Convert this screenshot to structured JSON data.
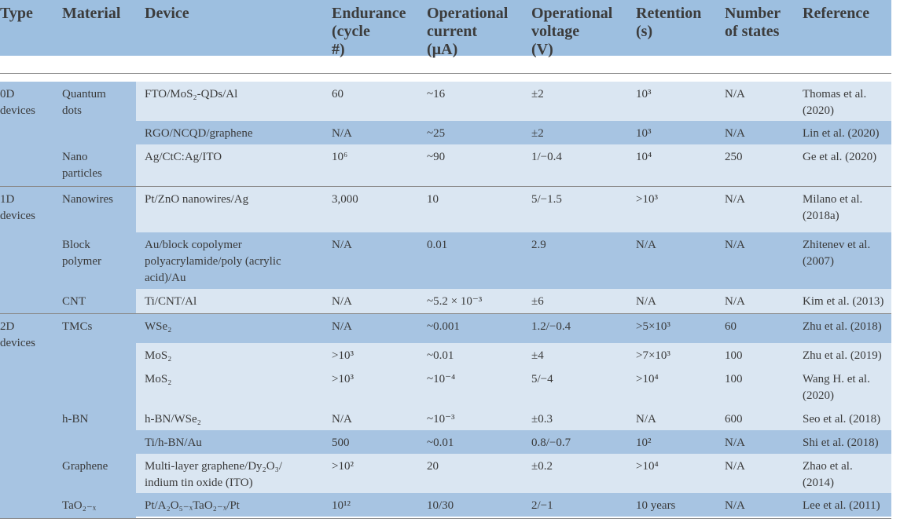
{
  "headers": [
    "Type",
    "Material",
    "Device",
    "Endurance\n(cycle\n#)",
    "Operational\ncurrent\n(µA)",
    "Operational\nvoltage\n(V)",
    "Retention\n(s)",
    "Number\nof states",
    "Reference"
  ],
  "groups": [
    {
      "type": "0D\ndevices",
      "materials": [
        {
          "name": "Quantum\ndots",
          "rows": [
            {
              "device": "FTO/MoS₂-QDs/Al",
              "endurance": "60",
              "current": "~16",
              "voltage": "±2",
              "retention": "10³",
              "states": "N/A",
              "reference": "Thomas et al.\n(2020)"
            },
            {
              "device": "RGO/NCQD/graphene",
              "endurance": "N/A",
              "current": "~25",
              "voltage": "±2",
              "retention": "10³",
              "states": "N/A",
              "reference": "Lin et al. (2020)"
            }
          ]
        },
        {
          "name": "Nano\nparticles",
          "rows": [
            {
              "device": "Ag/CtC:Ag/ITO",
              "endurance": "10⁶",
              "current": "~90",
              "voltage": "1/−0.4",
              "retention": "10⁴",
              "states": "250",
              "reference": "Ge et al. (2020)"
            }
          ]
        }
      ]
    },
    {
      "type": "1D\ndevices",
      "materials": [
        {
          "name": "Nanowires",
          "rows": [
            {
              "device": "Pt/ZnO nanowires/Ag",
              "endurance": "3,000",
              "current": "10",
              "voltage": "5/−1.5",
              "retention": ">10³",
              "states": "N/A",
              "reference": "Milano et al.\n(2018a)"
            }
          ]
        },
        {
          "name": "Block\npolymer",
          "rows": [
            {
              "device": "Au/block copolymer\npolyacrylamide/poly (acrylic\nacid)/Au",
              "endurance": "N/A",
              "current": "0.01",
              "voltage": "2.9",
              "retention": "N/A",
              "states": "N/A",
              "reference": "Zhitenev et al.\n(2007)"
            }
          ]
        },
        {
          "name": "CNT",
          "rows": [
            {
              "device": "Ti/CNT/Al",
              "endurance": "N/A",
              "current": "~5.2 × 10⁻³",
              "voltage": "±6",
              "retention": "N/A",
              "states": "N/A",
              "reference": "Kim et al. (2013)"
            }
          ]
        }
      ]
    },
    {
      "type": "2D\ndevices",
      "materials": [
        {
          "name": "TMCs",
          "rows": [
            {
              "device": "WSe₂",
              "endurance": "N/A",
              "current": "~0.001",
              "voltage": "1.2/−0.4",
              "retention": ">5×10³",
              "states": "60",
              "reference": "Zhu et al. (2018)"
            },
            {
              "device": "MoS₂",
              "endurance": ">10³",
              "current": "~0.01",
              "voltage": "±4",
              "retention": ">7×10³",
              "states": "100",
              "reference": "Zhu et al. (2019)"
            },
            {
              "device": "MoS₂",
              "endurance": ">10³",
              "current": "~10⁻⁴",
              "voltage": "5/−4",
              "retention": ">10⁴",
              "states": "100",
              "reference": "Wang H. et al.\n(2020)"
            }
          ]
        },
        {
          "name": "h-BN",
          "rows": [
            {
              "device": "h-BN/WSe₂",
              "endurance": "N/A",
              "current": "~10⁻³",
              "voltage": "±0.3",
              "retention": "N/A",
              "states": "600",
              "reference": "Seo et al. (2018)"
            },
            {
              "device": "Ti/h-BN/Au",
              "endurance": "500",
              "current": "~0.01",
              "voltage": "0.8/−0.7",
              "retention": "10²",
              "states": "N/A",
              "reference": "Shi et al. (2018)"
            }
          ]
        },
        {
          "name": "Graphene",
          "rows": [
            {
              "device": "Multi-layer graphene/Dy₂O₃/\nindium tin oxide (ITO)",
              "endurance": ">10²",
              "current": "20",
              "voltage": "±0.2",
              "retention": ">10⁴",
              "states": "N/A",
              "reference": "Zhao et al.\n(2014)"
            }
          ]
        },
        {
          "name": "TaO₂₋ₓ",
          "rows": [
            {
              "device": "Pt/A₂O₅₋ₓTaO₂₋ₓ/Pt",
              "endurance": "10¹²",
              "current": "10/30",
              "voltage": "2/−1",
              "retention": "10 years",
              "states": "N/A",
              "reference": "Lee et al. (2011)"
            }
          ]
        }
      ]
    }
  ]
}
